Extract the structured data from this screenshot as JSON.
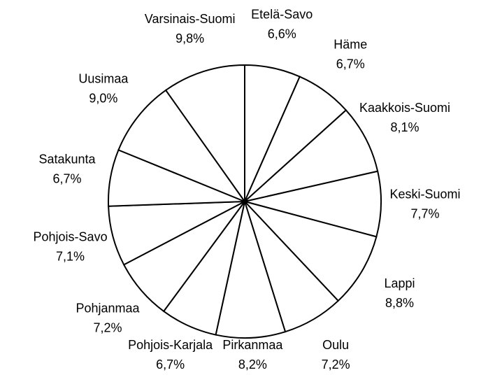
{
  "chart_data": {
    "type": "pie",
    "categories": [
      "Etelä-Savo",
      "Häme",
      "Kaakkois-Suomi",
      "Keski-Suomi",
      "Lappi",
      "Oulu",
      "Pirkanmaa",
      "Pohjois-Karjala",
      "Pohjanmaa",
      "Pohjois-Savo",
      "Satakunta",
      "Uusimaa",
      "Varsinais-Suomi"
    ],
    "values": [
      6.6,
      6.7,
      8.1,
      7.7,
      8.8,
      7.2,
      8.2,
      6.7,
      7.2,
      7.1,
      6.7,
      9.0,
      9.8
    ],
    "value_labels": [
      "6,6%",
      "6,7%",
      "8,1%",
      "7,7%",
      "8,8%",
      "7,2%",
      "8,2%",
      "6,7%",
      "7,2%",
      "7,1%",
      "6,7%",
      "9,0%",
      "9,8%"
    ],
    "color": "#ffffff"
  }
}
